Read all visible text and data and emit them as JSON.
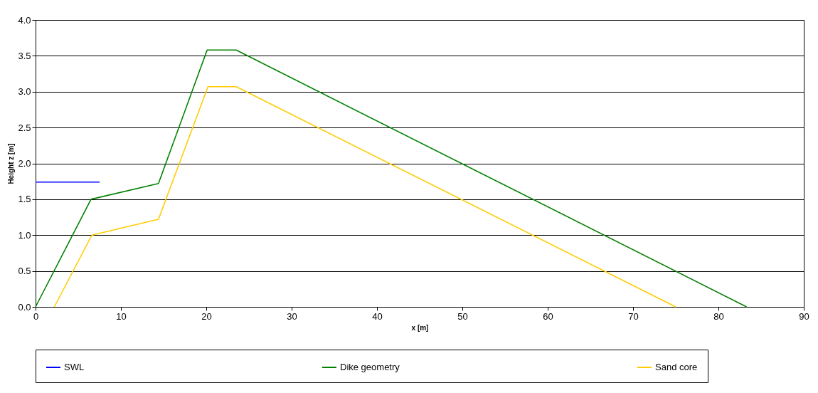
{
  "chart_data": {
    "type": "line",
    "xlabel": "x [m]",
    "ylabel": "Height z [m]",
    "xlim": [
      0,
      90
    ],
    "xticks": [
      0,
      10,
      20,
      30,
      40,
      50,
      60,
      70,
      80,
      90
    ],
    "ylim": [
      0,
      4
    ],
    "yticks": [
      {
        "value": 0,
        "label": "0.0"
      },
      {
        "value": 0.5,
        "label": "0.5"
      },
      {
        "value": 1,
        "label": "1.0"
      },
      {
        "value": 1.5,
        "label": "1.5"
      },
      {
        "value": 2,
        "label": "2.0"
      },
      {
        "value": 2.5,
        "label": "2.5"
      },
      {
        "value": 3,
        "label": "3.0"
      },
      {
        "value": 3.5,
        "label": "3.5"
      },
      {
        "value": 4,
        "label": "4.0"
      }
    ],
    "grid": "y",
    "legend": "bottom",
    "marker": "none",
    "line_style": "solid",
    "series": [
      {
        "name": "SWL",
        "color": "#0000ff",
        "x": [
          0,
          7.5
        ],
        "values": [
          1.74,
          1.74
        ]
      },
      {
        "name": "Dike geometry",
        "color": "#008000",
        "x": [
          0,
          6.5,
          14.4,
          20.1,
          23.5,
          83.3
        ],
        "values": [
          0,
          1.5,
          1.72,
          3.58,
          3.58,
          0
        ]
      },
      {
        "name": "Sand core",
        "color": "#ffcc00",
        "x": [
          2.2,
          6.6,
          14.4,
          20.2,
          23.5,
          75
        ],
        "values": [
          0,
          1.0,
          1.22,
          3.07,
          3.07,
          0
        ]
      }
    ]
  }
}
